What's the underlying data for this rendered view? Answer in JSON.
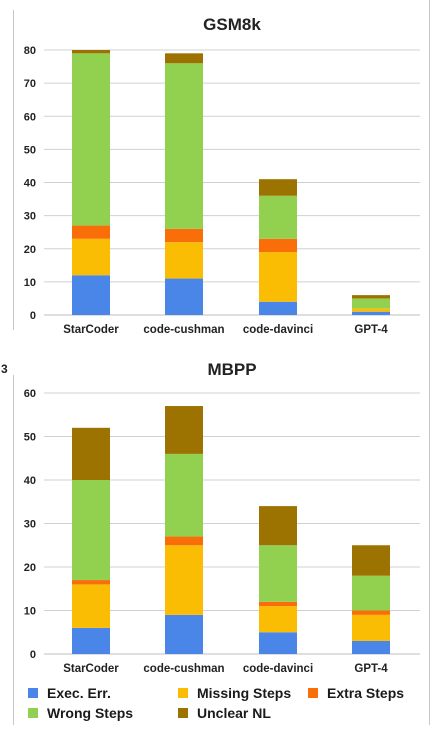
{
  "colors": {
    "exec": "#4a86e8",
    "missing": "#fbbc04",
    "extra": "#fa6e0a",
    "wrong": "#92d050",
    "unclear": "#9c7200",
    "grid": "#d0d0d0",
    "axis_text": "#222222"
  },
  "stray_label": "3",
  "legend": [
    {
      "key": "exec",
      "label": "Exec. Err."
    },
    {
      "key": "missing",
      "label": "Missing Steps"
    },
    {
      "key": "extra",
      "label": "Extra Steps"
    },
    {
      "key": "wrong",
      "label": "Wrong Steps"
    },
    {
      "key": "unclear",
      "label": "Unclear NL"
    }
  ],
  "chart_data": [
    {
      "type": "bar",
      "stacked": true,
      "title": "GSM8k",
      "xlabel": "",
      "ylabel": "",
      "ylim": [
        0,
        80
      ],
      "yticks": [
        0,
        10,
        20,
        30,
        40,
        50,
        60,
        70,
        80
      ],
      "grid": true,
      "categories": [
        "StarCoder",
        "code-cushman",
        "code-davinci",
        "GPT-4"
      ],
      "series": [
        {
          "name": "Exec. Err.",
          "key": "exec",
          "values": [
            12,
            11,
            4,
            1
          ]
        },
        {
          "name": "Missing Steps",
          "key": "missing",
          "values": [
            11,
            11,
            15,
            1
          ]
        },
        {
          "name": "Extra Steps",
          "key": "extra",
          "values": [
            4,
            4,
            4,
            0
          ]
        },
        {
          "name": "Wrong Steps",
          "key": "wrong",
          "values": [
            52,
            50,
            13,
            3
          ]
        },
        {
          "name": "Unclear NL",
          "key": "unclear",
          "values": [
            1,
            3,
            5,
            1
          ]
        }
      ]
    },
    {
      "type": "bar",
      "stacked": true,
      "title": "MBPP",
      "xlabel": "",
      "ylabel": "",
      "ylim": [
        0,
        60
      ],
      "yticks": [
        0,
        10,
        20,
        30,
        40,
        50,
        60
      ],
      "grid": true,
      "categories": [
        "StarCoder",
        "code-cushman",
        "code-davinci",
        "GPT-4"
      ],
      "series": [
        {
          "name": "Exec. Err.",
          "key": "exec",
          "values": [
            6,
            9,
            5,
            3
          ]
        },
        {
          "name": "Missing Steps",
          "key": "missing",
          "values": [
            10,
            16,
            6,
            6
          ]
        },
        {
          "name": "Extra Steps",
          "key": "extra",
          "values": [
            1,
            2,
            1,
            1
          ]
        },
        {
          "name": "Wrong Steps",
          "key": "wrong",
          "values": [
            23,
            19,
            13,
            8
          ]
        },
        {
          "name": "Unclear NL",
          "key": "unclear",
          "values": [
            12,
            11,
            9,
            7
          ]
        }
      ]
    }
  ]
}
